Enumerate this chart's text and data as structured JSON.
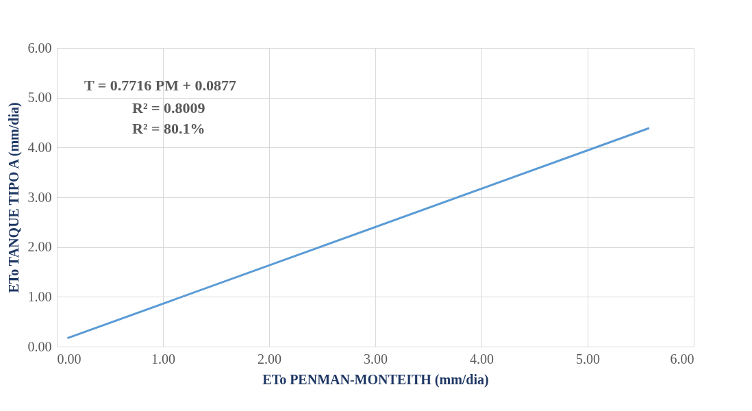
{
  "chart_data": {
    "type": "line",
    "xlabel": "ETo PENMAN-MONTEITH (mm/dia)",
    "ylabel": "ETo TANQUE TIPO A (mm/dia)",
    "series": [
      {
        "color": "#5b9bd5",
        "x": [
          0.1,
          5.58
        ],
        "values": [
          0.17,
          4.39
        ]
      }
    ],
    "xlim": [
      0,
      6
    ],
    "ylim": [
      0,
      6
    ],
    "xticks": [
      {
        "value": 0,
        "label": "0.00"
      },
      {
        "value": 1,
        "label": "1.00"
      },
      {
        "value": 2,
        "label": "2.00"
      },
      {
        "value": 3,
        "label": "3.00"
      },
      {
        "value": 4,
        "label": "4.00"
      },
      {
        "value": 5,
        "label": "5.00"
      },
      {
        "value": 6,
        "label": "6.00"
      }
    ],
    "yticks": [
      {
        "value": 0,
        "label": "0.00"
      },
      {
        "value": 1,
        "label": "1.00"
      },
      {
        "value": 2,
        "label": "2.00"
      },
      {
        "value": 3,
        "label": "3.00"
      },
      {
        "value": 4,
        "label": "4.00"
      },
      {
        "value": 5,
        "label": "5.00"
      },
      {
        "value": 6,
        "label": "6.00"
      }
    ],
    "grid": true,
    "marker": "none",
    "line_style": "solid",
    "annotations": [
      "T = 0.7716 PM + 0.0877",
      "R² = 0.8009",
      "R² = 80.1%"
    ]
  }
}
